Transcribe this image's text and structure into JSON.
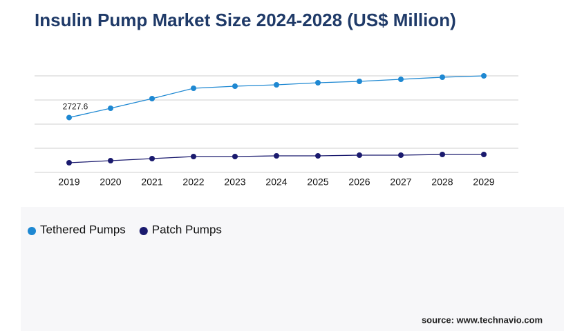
{
  "chart_data": {
    "type": "line",
    "title": "Insulin Pump Market Size 2024-2028 (US$ Million)",
    "source": "source: www.technavio.com",
    "categories": [
      "2019",
      "2020",
      "2021",
      "2022",
      "2023",
      "2024",
      "2025",
      "2026",
      "2027",
      "2028",
      "2029"
    ],
    "series": [
      {
        "name": "Tethered Pumps",
        "color": "#1e88d2",
        "values": [
          2727.6,
          3189,
          3669,
          4183,
          4286,
          4354,
          4457,
          4526,
          4629,
          4731,
          4800
        ],
        "value_labels": [
          "2727.6",
          null,
          null,
          null,
          null,
          null,
          null,
          null,
          null,
          null,
          null
        ]
      },
      {
        "name": "Patch Pumps",
        "color": "#1a1a6e",
        "values": [
          480,
          583,
          686,
          789,
          789,
          823,
          823,
          857,
          857,
          891,
          891
        ]
      }
    ],
    "ylim": [
      0,
      4800
    ],
    "yticks": [
      0,
      1200,
      2400,
      3600,
      4800
    ],
    "grid": true
  }
}
